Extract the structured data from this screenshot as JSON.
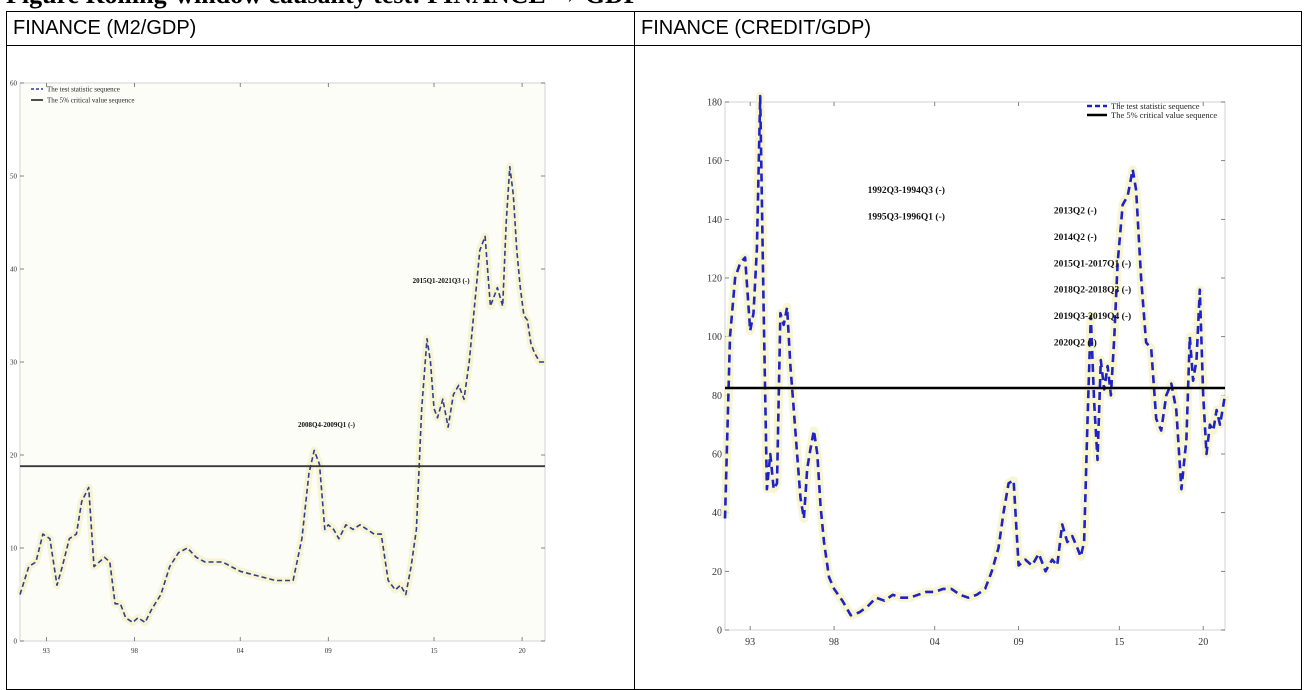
{
  "page": {
    "caption_fragment": "Figure     Rolling-window causality test:       FINANCE → GDP"
  },
  "panels": [
    {
      "title": "FINANCE (M2/GDP)"
    },
    {
      "title": "FINANCE (CREDIT/GDP)"
    }
  ],
  "chart_data": [
    {
      "type": "line",
      "title": "",
      "xlabel": "",
      "ylabel": "",
      "xlim": [
        1991.5,
        2021.3
      ],
      "ylim": [
        0,
        60
      ],
      "x_ticks": [
        1993,
        1998,
        2004,
        2009,
        2015,
        2020
      ],
      "x_tick_labels": [
        "93",
        "98",
        "04",
        "09",
        "15",
        "20"
      ],
      "y_ticks": [
        0,
        10,
        20,
        30,
        40,
        50,
        60
      ],
      "y_tick_labels": [
        "0",
        "10",
        "20",
        "30",
        "40",
        "50",
        "60"
      ],
      "legend_position": "top-left",
      "grid": false,
      "series": [
        {
          "name": "The test statistic sequence",
          "style": "dashed",
          "color": "#2f3d8f",
          "x": [
            1991.5,
            1992.0,
            1992.4,
            1992.8,
            1993.2,
            1993.6,
            1993.9,
            1994.3,
            1994.7,
            1995.0,
            1995.4,
            1995.7,
            1996.0,
            1996.3,
            1996.6,
            1996.9,
            1997.2,
            1997.5,
            1997.9,
            1998.2,
            1998.6,
            1999.0,
            1999.5,
            2000.0,
            2000.5,
            2001.0,
            2001.5,
            2002.0,
            2003.0,
            2004.0,
            2005.0,
            2006.0,
            2007.0,
            2007.5,
            2007.9,
            2008.2,
            2008.5,
            2008.8,
            2009.0,
            2009.3,
            2009.6,
            2010.0,
            2010.4,
            2010.8,
            2011.2,
            2011.6,
            2012.0,
            2012.4,
            2012.8,
            2013.1,
            2013.4,
            2013.7,
            2014.0,
            2014.3,
            2014.6,
            2014.8,
            2015.0,
            2015.2,
            2015.5,
            2015.8,
            2016.1,
            2016.4,
            2016.7,
            2017.0,
            2017.3,
            2017.6,
            2017.9,
            2018.2,
            2018.6,
            2018.9,
            2019.1,
            2019.3,
            2019.5,
            2019.7,
            2019.9,
            2020.1,
            2020.3,
            2020.5,
            2020.7,
            2021.0,
            2021.3
          ],
          "y": [
            5.0,
            8.0,
            8.5,
            11.5,
            11.0,
            6.0,
            8.0,
            11.0,
            11.5,
            15.0,
            16.5,
            8.0,
            8.5,
            9.0,
            8.5,
            4.0,
            4.0,
            2.5,
            2.0,
            2.5,
            2.0,
            3.5,
            5.0,
            8.0,
            9.5,
            10.0,
            9.0,
            8.5,
            8.5,
            7.5,
            7.0,
            6.5,
            6.5,
            11.0,
            18.0,
            20.5,
            19.0,
            12.0,
            12.5,
            12.0,
            11.0,
            12.5,
            12.0,
            12.5,
            12.0,
            11.5,
            11.5,
            6.5,
            5.5,
            6.0,
            5.0,
            8.0,
            12.0,
            25.0,
            32.5,
            30.0,
            25.0,
            24.0,
            26.0,
            23.0,
            26.5,
            27.5,
            26.0,
            30.0,
            36.0,
            42.0,
            43.5,
            36.0,
            38.0,
            36.0,
            45.0,
            51.0,
            48.0,
            42.0,
            38.0,
            35.0,
            34.5,
            32.0,
            31.0,
            30.0,
            30.0
          ]
        },
        {
          "name": "The 5% critical value sequence",
          "style": "solid",
          "color": "#3a3a3a",
          "x": [
            1991.5,
            2021.3
          ],
          "y": [
            18.8,
            18.8
          ]
        }
      ],
      "annotations": [
        {
          "text": "2008Q4-2009Q1 (-)",
          "x": 2008.9,
          "y": 23.0
        },
        {
          "text": "2015Q1-2021Q3 (-)",
          "x": 2015.4,
          "y": 38.5
        }
      ]
    },
    {
      "type": "line",
      "title": "",
      "xlabel": "",
      "ylabel": "",
      "xlim": [
        1991.5,
        2021.3
      ],
      "ylim": [
        0,
        180
      ],
      "x_ticks": [
        1993,
        1998,
        2004,
        2009,
        2015,
        2020
      ],
      "x_tick_labels": [
        "93",
        "98",
        "04",
        "09",
        "15",
        "20"
      ],
      "y_ticks": [
        0,
        20,
        40,
        60,
        80,
        100,
        120,
        140,
        160,
        180
      ],
      "y_tick_labels": [
        "0",
        "20",
        "40",
        "60",
        "80",
        "100",
        "120",
        "140",
        "160",
        "180"
      ],
      "legend_position": "top-right",
      "grid": false,
      "series": [
        {
          "name": "The test statistic sequence",
          "style": "dashed",
          "color": "#1f22c4",
          "x": [
            1991.5,
            1991.8,
            1992.1,
            1992.4,
            1992.7,
            1993.0,
            1993.2,
            1993.4,
            1993.6,
            1993.8,
            1994.0,
            1994.2,
            1994.4,
            1994.6,
            1994.8,
            1995.0,
            1995.2,
            1995.4,
            1995.6,
            1995.8,
            1996.0,
            1996.2,
            1996.4,
            1996.6,
            1996.8,
            1997.0,
            1997.2,
            1997.4,
            1997.7,
            1998.0,
            1998.5,
            1999.0,
            1999.5,
            2000.0,
            2000.5,
            2001.0,
            2001.5,
            2002.0,
            2002.5,
            2003.0,
            2003.5,
            2004.0,
            2004.5,
            2005.0,
            2005.5,
            2006.0,
            2006.5,
            2007.0,
            2007.4,
            2007.8,
            2008.1,
            2008.4,
            2008.7,
            2009.0,
            2009.4,
            2009.8,
            2010.2,
            2010.6,
            2011.0,
            2011.3,
            2011.6,
            2011.9,
            2012.2,
            2012.5,
            2012.7,
            2012.9,
            2013.1,
            2013.3,
            2013.5,
            2013.7,
            2013.9,
            2014.1,
            2014.3,
            2014.5,
            2014.7,
            2014.9,
            2015.2,
            2015.5,
            2015.8,
            2016.0,
            2016.3,
            2016.6,
            2016.9,
            2017.2,
            2017.5,
            2017.8,
            2018.1,
            2018.4,
            2018.7,
            2019.0,
            2019.2,
            2019.4,
            2019.6,
            2019.8,
            2020.0,
            2020.2,
            2020.4,
            2020.6,
            2020.8,
            2021.0,
            2021.3
          ],
          "y": [
            38,
            100,
            120,
            125,
            127,
            102,
            108,
            130,
            182,
            110,
            48,
            60,
            48,
            50,
            108,
            104,
            110,
            90,
            75,
            60,
            45,
            38,
            55,
            62,
            68,
            60,
            42,
            30,
            18,
            14,
            10,
            5,
            6,
            8,
            11,
            10,
            12,
            11,
            11,
            12,
            13,
            13,
            14,
            14,
            12,
            11,
            12,
            14,
            20,
            28,
            40,
            50,
            51,
            22,
            24,
            22,
            26,
            20,
            24,
            22,
            36,
            30,
            32,
            28,
            25,
            30,
            70,
            107,
            78,
            58,
            92,
            82,
            90,
            80,
            100,
            125,
            145,
            148,
            157,
            150,
            120,
            98,
            96,
            72,
            68,
            80,
            84,
            75,
            48,
            65,
            100,
            85,
            92,
            116,
            80,
            60,
            70,
            68,
            75,
            70,
            80
          ]
        },
        {
          "name": "The 5% critical value sequence",
          "style": "solid",
          "color": "#000000",
          "x": [
            1991.5,
            2021.3
          ],
          "y": [
            82.5,
            82.5
          ]
        }
      ],
      "annotations": [
        {
          "text": "1992Q3-1994Q3 (-)",
          "x": 2000.0,
          "y": 149.0
        },
        {
          "text": "1995Q3-1996Q1 (-)",
          "x": 2000.0,
          "y": 140.0
        },
        {
          "text": "2013Q2 (-)",
          "x": 2011.1,
          "y": 142.0
        },
        {
          "text": "2014Q2 (-)",
          "x": 2011.1,
          "y": 133.0
        },
        {
          "text": "2015Q1-2017Q1 (-)",
          "x": 2011.1,
          "y": 124.0
        },
        {
          "text": "2018Q2-2018Q3 (-)",
          "x": 2011.1,
          "y": 115.0
        },
        {
          "text": "2019Q3-2019Q4 (-)",
          "x": 2011.1,
          "y": 106.0
        },
        {
          "text": "2020Q2 (-)",
          "x": 2011.1,
          "y": 97.0
        }
      ]
    }
  ]
}
